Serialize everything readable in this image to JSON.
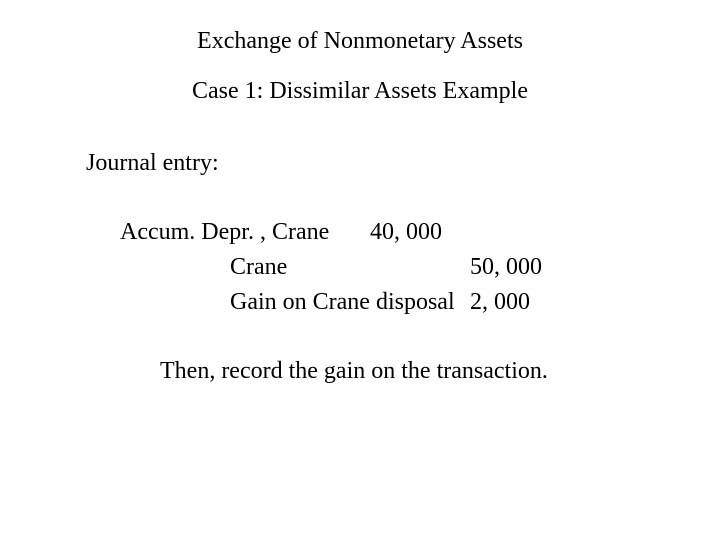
{
  "title": "Exchange of Nonmonetary Assets",
  "subtitle": "Case 1: Dissimilar Assets Example",
  "section_label": "Journal entry:",
  "entry": {
    "debit": {
      "account": "Accum. Depr. , Crane",
      "amount": "40, 000"
    },
    "credits": [
      {
        "account": "Crane",
        "amount": "50, 000"
      },
      {
        "account": "Gain on Crane disposal",
        "amount": "2, 000"
      }
    ]
  },
  "note": "Then, record the gain on the transaction.",
  "colors": {
    "background": "#ffffff",
    "text": "#000000"
  },
  "typography": {
    "family": "Times New Roman",
    "title_size_pt": 18,
    "body_size_pt": 18
  }
}
